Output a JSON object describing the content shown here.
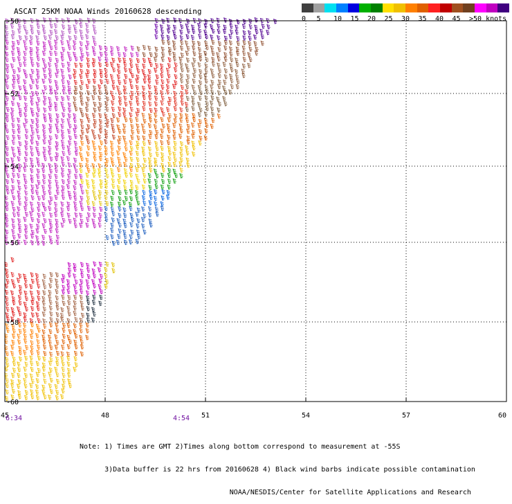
{
  "title": "ASCAT 25KM NOAA Winds 20160628 descending",
  "legend": {
    "colors": [
      "#404040",
      "#a0a0a0",
      "#00e0f0",
      "#0080ff",
      "#0000e0",
      "#00b000",
      "#008000",
      "#ffe000",
      "#f0c000",
      "#ff8000",
      "#e06000",
      "#ff2020",
      "#c00000",
      "#a05020",
      "#704020",
      "#ff00ff",
      "#c000c0",
      "#400080"
    ],
    "labels": [
      "0",
      "5",
      "10",
      "15",
      "20",
      "25",
      "30",
      "35",
      "40",
      "45",
      ">50 knots"
    ]
  },
  "axes": {
    "lon_labels": [
      "45",
      "48",
      "51",
      "54",
      "57",
      "60"
    ],
    "lat_labels": [
      "-50",
      "-52",
      "-54",
      "-56",
      "-58",
      "-60"
    ]
  },
  "times": [
    "6:34",
    "4:54"
  ],
  "notes": [
    "Note: 1) Times are GMT 2)Times along bottom correspond to measurement at -55S",
    "      3)Data buffer is 22 hrs from 20160628 4) Black wind barbs indicate possible contamination",
    "                                    NOAA/NESDIS/Center for Satellite Applications and Research"
  ]
}
